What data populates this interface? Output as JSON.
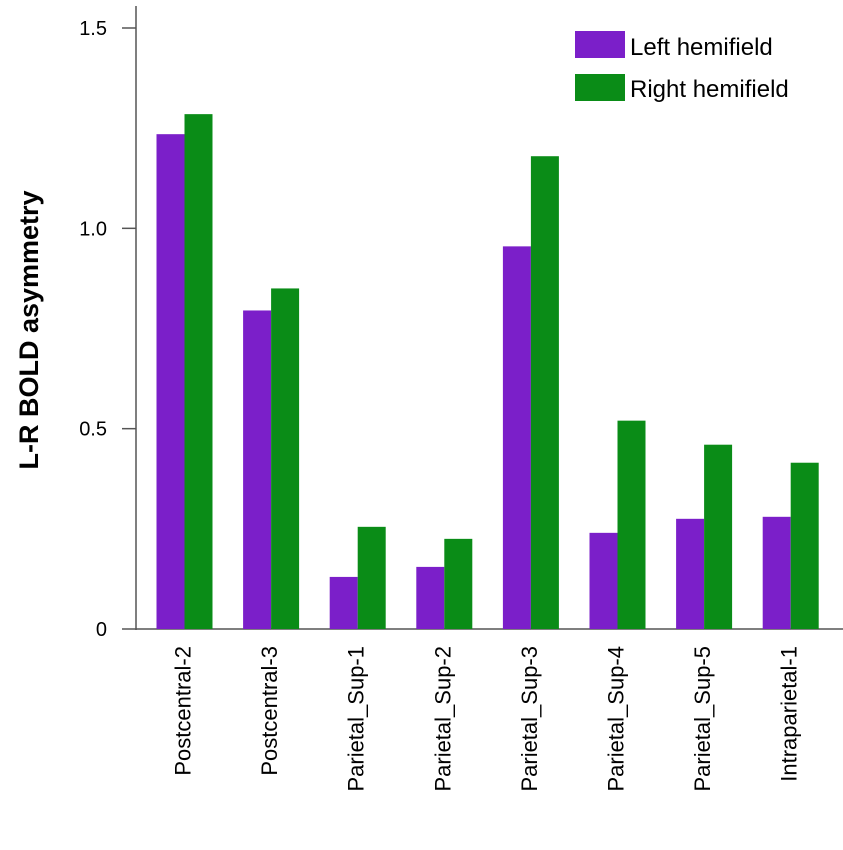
{
  "chart_data": {
    "type": "bar",
    "title": "",
    "xlabel": "",
    "ylabel": "L-R BOLD asymmetry",
    "ylim": [
      0,
      1.5
    ],
    "yticks": [
      {
        "value": 0,
        "label": "0"
      },
      {
        "value": 0.5,
        "label": "0.5"
      },
      {
        "value": 1.0,
        "label": "1.0"
      },
      {
        "value": 1.5,
        "label": "1.5"
      }
    ],
    "categories": [
      "Postcentral-2",
      "Postcentral-3",
      "Parietal_Sup-1",
      "Parietal_Sup-2",
      "Parietal_Sup-3",
      "Parietal_Sup-4",
      "Parietal_Sup-5",
      "Intraparietal-1"
    ],
    "series": [
      {
        "name": "Left hemifield",
        "color": "#7b1fc9",
        "values": [
          1.235,
          0.795,
          0.13,
          0.155,
          0.955,
          0.24,
          0.275,
          0.28
        ]
      },
      {
        "name": "Right hemifield",
        "color": "#0a8c17",
        "values": [
          1.285,
          0.85,
          0.255,
          0.225,
          1.18,
          0.52,
          0.46,
          0.415
        ]
      }
    ],
    "legend_position": "top-right"
  }
}
